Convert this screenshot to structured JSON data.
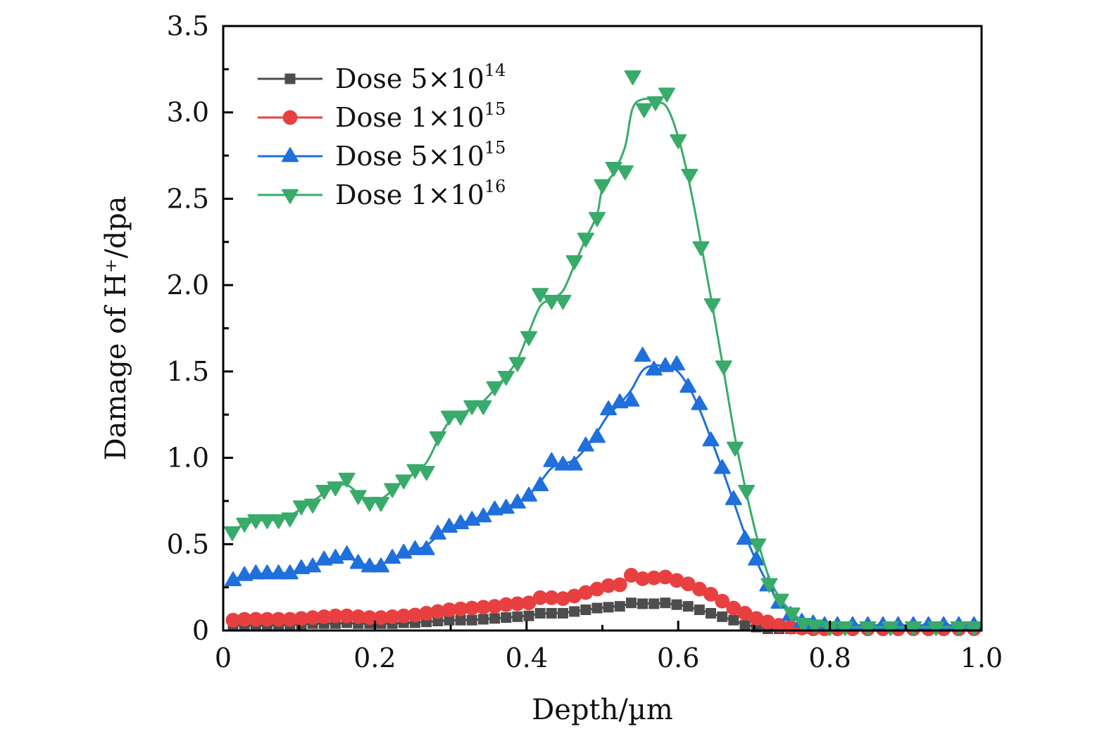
{
  "chart_data": {
    "type": "line",
    "title": "",
    "xlabel": "Depth/µm",
    "ylabel": "Damage of H⁺/dpa",
    "xlim": [
      0,
      1.0
    ],
    "ylim": [
      0,
      3.5
    ],
    "xticks": [
      0,
      0.2,
      0.4,
      0.6,
      0.8,
      1.0
    ],
    "xtick_labels": [
      "0",
      "0.2",
      "0.4",
      "0.6",
      "0.8",
      "1.0"
    ],
    "yticks": [
      0,
      0.5,
      1.0,
      1.5,
      2.0,
      2.5,
      3.0,
      3.5
    ],
    "ytick_labels": [
      "0",
      "0.5",
      "1.0",
      "1.5",
      "2.0",
      "2.5",
      "3.0",
      "3.5"
    ],
    "grid": false,
    "legend_position": "top-left",
    "series": [
      {
        "name": "Dose 5×10^14",
        "label_prefix": "Dose 5×10",
        "label_exp": "14",
        "color": "#4d4d4d",
        "marker": "square",
        "x": [
          0.013,
          0.028,
          0.043,
          0.058,
          0.073,
          0.088,
          0.103,
          0.118,
          0.133,
          0.148,
          0.163,
          0.178,
          0.193,
          0.208,
          0.223,
          0.238,
          0.253,
          0.268,
          0.283,
          0.298,
          0.313,
          0.328,
          0.343,
          0.358,
          0.373,
          0.388,
          0.403,
          0.418,
          0.433,
          0.448,
          0.463,
          0.478,
          0.493,
          0.508,
          0.523,
          0.538,
          0.553,
          0.568,
          0.583,
          0.598,
          0.613,
          0.628,
          0.643,
          0.658,
          0.673,
          0.688,
          0.703,
          0.718,
          0.733,
          0.748,
          0.763,
          0.778,
          0.793,
          0.81,
          0.83,
          0.85,
          0.87,
          0.89,
          0.91,
          0.93,
          0.95,
          0.97,
          0.99
        ],
        "y": [
          0.03,
          0.03,
          0.03,
          0.03,
          0.03,
          0.035,
          0.035,
          0.04,
          0.04,
          0.04,
          0.045,
          0.04,
          0.04,
          0.04,
          0.04,
          0.045,
          0.045,
          0.05,
          0.055,
          0.06,
          0.06,
          0.06,
          0.065,
          0.07,
          0.075,
          0.08,
          0.085,
          0.1,
          0.1,
          0.1,
          0.11,
          0.12,
          0.13,
          0.135,
          0.14,
          0.16,
          0.155,
          0.155,
          0.16,
          0.15,
          0.14,
          0.12,
          0.1,
          0.08,
          0.06,
          0.03,
          0.02,
          0.01,
          0.01,
          0.01,
          0.01,
          0.01,
          0.01,
          0.01,
          0.01,
          0.01,
          0.01,
          0.01,
          0.01,
          0.01,
          0.01,
          0.01,
          0.01
        ]
      },
      {
        "name": "Dose 1×10^15",
        "label_prefix": "Dose 1×10",
        "label_exp": "15",
        "color": "#e84040",
        "marker": "circle",
        "x": [
          0.013,
          0.028,
          0.043,
          0.058,
          0.073,
          0.088,
          0.103,
          0.118,
          0.133,
          0.148,
          0.163,
          0.178,
          0.193,
          0.208,
          0.223,
          0.238,
          0.253,
          0.268,
          0.283,
          0.298,
          0.313,
          0.328,
          0.343,
          0.358,
          0.373,
          0.388,
          0.403,
          0.418,
          0.433,
          0.448,
          0.463,
          0.478,
          0.493,
          0.508,
          0.523,
          0.538,
          0.553,
          0.568,
          0.583,
          0.598,
          0.613,
          0.628,
          0.643,
          0.658,
          0.673,
          0.688,
          0.703,
          0.718,
          0.733,
          0.748,
          0.763,
          0.778,
          0.793,
          0.81,
          0.83,
          0.85,
          0.87,
          0.89,
          0.91,
          0.93,
          0.95,
          0.97,
          0.99
        ],
        "y": [
          0.06,
          0.065,
          0.065,
          0.065,
          0.065,
          0.065,
          0.07,
          0.075,
          0.08,
          0.085,
          0.085,
          0.08,
          0.075,
          0.075,
          0.08,
          0.085,
          0.09,
          0.1,
          0.11,
          0.12,
          0.125,
          0.13,
          0.135,
          0.14,
          0.15,
          0.155,
          0.16,
          0.19,
          0.19,
          0.185,
          0.2,
          0.22,
          0.24,
          0.26,
          0.265,
          0.32,
          0.3,
          0.305,
          0.31,
          0.29,
          0.27,
          0.24,
          0.21,
          0.17,
          0.13,
          0.1,
          0.07,
          0.05,
          0.03,
          0.02,
          0.015,
          0.01,
          0.01,
          0.01,
          0.01,
          0.01,
          0.01,
          0.01,
          0.01,
          0.01,
          0.01,
          0.01,
          0.01
        ]
      },
      {
        "name": "Dose 5×10^15",
        "label_prefix": "Dose 5×10",
        "label_exp": "15",
        "color": "#1f6fdc",
        "marker": "triangle-up",
        "x": [
          0.013,
          0.028,
          0.043,
          0.058,
          0.073,
          0.088,
          0.103,
          0.118,
          0.133,
          0.148,
          0.163,
          0.178,
          0.193,
          0.208,
          0.223,
          0.238,
          0.253,
          0.268,
          0.283,
          0.298,
          0.313,
          0.328,
          0.343,
          0.358,
          0.373,
          0.388,
          0.403,
          0.418,
          0.433,
          0.448,
          0.463,
          0.478,
          0.493,
          0.508,
          0.523,
          0.538,
          0.553,
          0.568,
          0.583,
          0.598,
          0.613,
          0.628,
          0.643,
          0.658,
          0.673,
          0.688,
          0.703,
          0.718,
          0.733,
          0.748,
          0.763,
          0.778,
          0.793,
          0.81,
          0.83,
          0.85,
          0.87,
          0.89,
          0.91,
          0.93,
          0.95,
          0.97,
          0.99
        ],
        "y": [
          0.29,
          0.32,
          0.33,
          0.33,
          0.33,
          0.33,
          0.36,
          0.37,
          0.41,
          0.42,
          0.44,
          0.39,
          0.37,
          0.37,
          0.42,
          0.45,
          0.47,
          0.47,
          0.56,
          0.6,
          0.62,
          0.64,
          0.66,
          0.7,
          0.71,
          0.74,
          0.78,
          0.84,
          0.98,
          0.96,
          0.96,
          1.07,
          1.12,
          1.28,
          1.32,
          1.33,
          1.59,
          1.51,
          1.53,
          1.54,
          1.41,
          1.31,
          1.1,
          0.94,
          0.76,
          0.53,
          0.41,
          0.26,
          0.16,
          0.09,
          0.05,
          0.04,
          0.03,
          0.03,
          0.03,
          0.03,
          0.03,
          0.03,
          0.03,
          0.03,
          0.03,
          0.03,
          0.03
        ]
      },
      {
        "name": "Dose 1×10^16",
        "label_prefix": "Dose 1×10",
        "label_exp": "16",
        "color": "#38ab6a",
        "marker": "triangle-down",
        "x": [
          0.012,
          0.028,
          0.043,
          0.058,
          0.073,
          0.088,
          0.103,
          0.118,
          0.133,
          0.148,
          0.163,
          0.178,
          0.193,
          0.208,
          0.223,
          0.238,
          0.253,
          0.268,
          0.283,
          0.298,
          0.313,
          0.328,
          0.343,
          0.358,
          0.373,
          0.388,
          0.403,
          0.418,
          0.433,
          0.448,
          0.463,
          0.478,
          0.493,
          0.5,
          0.515,
          0.53,
          0.54,
          0.555,
          0.57,
          0.585,
          0.6,
          0.615,
          0.63,
          0.645,
          0.66,
          0.675,
          0.69,
          0.705,
          0.72,
          0.735,
          0.75,
          0.765,
          0.78,
          0.8,
          0.82,
          0.85,
          0.88,
          0.91,
          0.94,
          0.97,
          0.99
        ],
        "y": [
          0.57,
          0.62,
          0.64,
          0.64,
          0.64,
          0.65,
          0.72,
          0.73,
          0.81,
          0.83,
          0.88,
          0.78,
          0.74,
          0.74,
          0.82,
          0.87,
          0.93,
          0.92,
          1.12,
          1.24,
          1.24,
          1.3,
          1.3,
          1.41,
          1.47,
          1.55,
          1.7,
          1.95,
          1.91,
          1.91,
          2.14,
          2.27,
          2.39,
          2.58,
          2.68,
          2.66,
          3.21,
          3.02,
          3.06,
          3.11,
          2.84,
          2.64,
          2.22,
          1.89,
          1.53,
          1.06,
          0.81,
          0.5,
          0.27,
          0.18,
          0.1,
          0.04,
          0.03,
          0.02,
          0.02,
          0.02,
          0.02,
          0.02,
          0.02,
          0.02,
          0.02
        ]
      }
    ]
  }
}
